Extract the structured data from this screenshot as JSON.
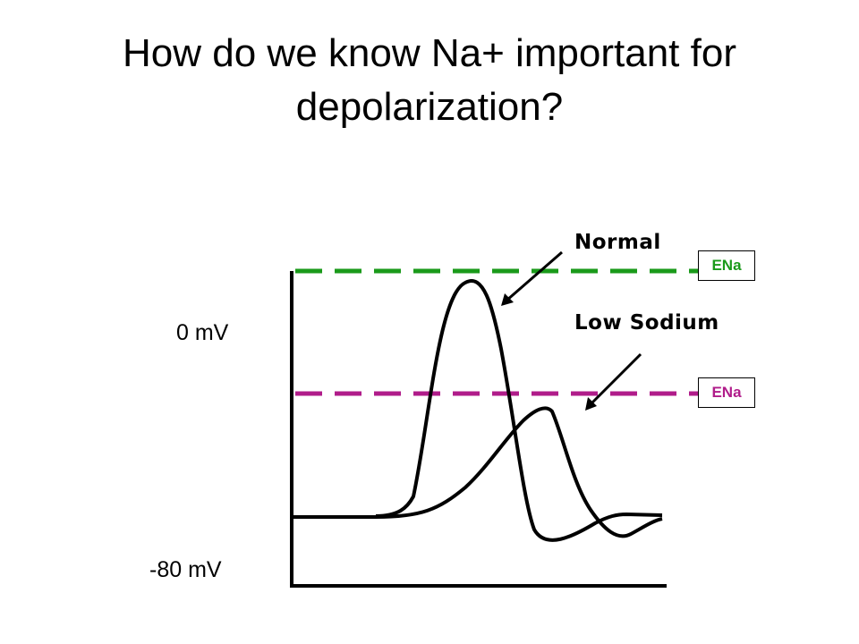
{
  "slide": {
    "title_line1": "How do we know Na+ important for",
    "title_line2": "depolarization?"
  },
  "diagram": {
    "y_labels": {
      "zero": "0 mV",
      "rest": "-80 mV"
    },
    "curves": {
      "normal": {
        "label": "Normal",
        "equilibrium_label": "ENa",
        "color": "#1a9a1a"
      },
      "low_sodium": {
        "label": "Low Sodium",
        "equilibrium_label": "ENa",
        "color": "#b01c8a"
      }
    }
  }
}
